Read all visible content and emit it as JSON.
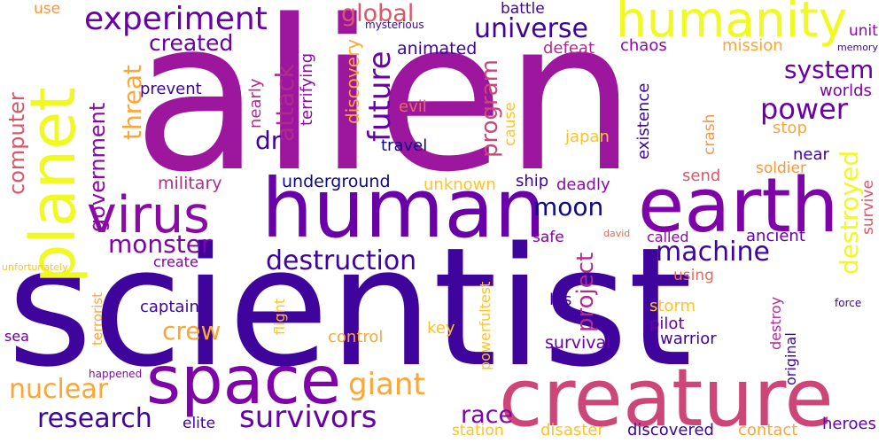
{
  "words": [
    {
      "text": "alien",
      "color": "#9c179e",
      "rotated": false
    },
    {
      "text": "scientist",
      "color": "#3e049c",
      "rotated": false
    },
    {
      "text": "human",
      "color": "#6a00a8",
      "rotated": false
    },
    {
      "text": "creature",
      "color": "#cc4778",
      "rotated": false
    },
    {
      "text": "earth",
      "color": "#7e03a8",
      "rotated": false
    },
    {
      "text": "space",
      "color": "#7e03a8",
      "rotated": false
    },
    {
      "text": "planet",
      "color": "#f0f921",
      "rotated": true
    },
    {
      "text": "humanity",
      "color": "#f0f921",
      "rotated": false
    },
    {
      "text": "virus",
      "color": "#8b0aa5",
      "rotated": false
    },
    {
      "text": "experiment",
      "color": "#6a00a8",
      "rotated": false
    },
    {
      "text": "destruction",
      "color": "#3e049c",
      "rotated": false
    },
    {
      "text": "survivors",
      "color": "#6a00a8",
      "rotated": false
    },
    {
      "text": "research",
      "color": "#3e049c",
      "rotated": false
    },
    {
      "text": "nuclear",
      "color": "#fca636",
      "rotated": false
    },
    {
      "text": "giant",
      "color": "#fca636",
      "rotated": false
    },
    {
      "text": "machine",
      "color": "#3e049c",
      "rotated": false
    },
    {
      "text": "power",
      "color": "#6a00a8",
      "rotated": false
    },
    {
      "text": "universe",
      "color": "#3e049c",
      "rotated": false
    },
    {
      "text": "future",
      "color": "#6a00a8",
      "rotated": true
    },
    {
      "text": "system",
      "color": "#6a00a8",
      "rotated": false
    },
    {
      "text": "monster",
      "color": "#7e03a8",
      "rotated": false
    },
    {
      "text": "moon",
      "color": "#0d0887",
      "rotated": false
    },
    {
      "text": "created",
      "color": "#6a00a8",
      "rotated": false
    },
    {
      "text": "global",
      "color": "#d8576b",
      "rotated": false
    },
    {
      "text": "crew",
      "color": "#fca636",
      "rotated": false
    },
    {
      "text": "race",
      "color": "#7e03a8",
      "rotated": false
    },
    {
      "text": "destroyed",
      "color": "#f0f921",
      "rotated": true
    },
    {
      "text": "government",
      "color": "#8b0aa5",
      "rotated": true
    },
    {
      "text": "computer",
      "color": "#d8576b",
      "rotated": true
    },
    {
      "text": "threat",
      "color": "#fca636",
      "rotated": true
    },
    {
      "text": "attack",
      "color": "#b12a90",
      "rotated": true
    },
    {
      "text": "dr",
      "color": "#3e049c",
      "rotated": false
    },
    {
      "text": "program",
      "color": "#cc4778",
      "rotated": true
    },
    {
      "text": "project",
      "color": "#b12a90",
      "rotated": true
    },
    {
      "text": "discovery",
      "color": "#fca636",
      "rotated": true
    },
    {
      "text": "terrifying",
      "color": "#8b0aa5",
      "rotated": true
    },
    {
      "text": "nearly",
      "color": "#b12a90",
      "rotated": true
    },
    {
      "text": "prevent",
      "color": "#3e049c",
      "rotated": false
    },
    {
      "text": "military",
      "color": "#b12a90",
      "rotated": false
    },
    {
      "text": "underground",
      "color": "#0d0887",
      "rotated": false
    },
    {
      "text": "unknown",
      "color": "#fdc328",
      "rotated": false
    },
    {
      "text": "ship",
      "color": "#3e049c",
      "rotated": false
    },
    {
      "text": "deadly",
      "color": "#8b0aa5",
      "rotated": false
    },
    {
      "text": "travel",
      "color": "#0d0887",
      "rotated": false
    },
    {
      "text": "japan",
      "color": "#fdc328",
      "rotated": false
    },
    {
      "text": "evil",
      "color": "#e56b5d",
      "rotated": false
    },
    {
      "text": "cause",
      "color": "#fdc328",
      "rotated": true
    },
    {
      "text": "animated",
      "color": "#3e049c",
      "rotated": false
    },
    {
      "text": "mysterious",
      "color": "#3e049c",
      "rotated": false
    },
    {
      "text": "battle",
      "color": "#3e049c",
      "rotated": false
    },
    {
      "text": "defeat",
      "color": "#b12a90",
      "rotated": false
    },
    {
      "text": "chaos",
      "color": "#8b0aa5",
      "rotated": false
    },
    {
      "text": "mission",
      "color": "#fca636",
      "rotated": false
    },
    {
      "text": "unit",
      "color": "#8b0aa5",
      "rotated": false
    },
    {
      "text": "memory",
      "color": "#3e049c",
      "rotated": false
    },
    {
      "text": "worlds",
      "color": "#7e03a8",
      "rotated": false
    },
    {
      "text": "existence",
      "color": "#3e049c",
      "rotated": true
    },
    {
      "text": "crash",
      "color": "#f89540",
      "rotated": true
    },
    {
      "text": "stop",
      "color": "#fca636",
      "rotated": false
    },
    {
      "text": "near",
      "color": "#3e049c",
      "rotated": false
    },
    {
      "text": "soldier",
      "color": "#f89540",
      "rotated": false
    },
    {
      "text": "send",
      "color": "#d8576b",
      "rotated": false
    },
    {
      "text": "survive",
      "color": "#d8576b",
      "rotated": true
    },
    {
      "text": "ancient",
      "color": "#6a00a8",
      "rotated": false
    },
    {
      "text": "called",
      "color": "#8b0aa5",
      "rotated": false
    },
    {
      "text": "david",
      "color": "#e56b5d",
      "rotated": false
    },
    {
      "text": "safe",
      "color": "#7e03a8",
      "rotated": false
    },
    {
      "text": "create",
      "color": "#7e03a8",
      "rotated": false
    },
    {
      "text": "use",
      "color": "#f89540",
      "rotated": false
    },
    {
      "text": "unfortunately",
      "color": "#fdc328",
      "rotated": false
    },
    {
      "text": "terrorist",
      "color": "#fca636",
      "rotated": true
    },
    {
      "text": "flight",
      "color": "#fdc328",
      "rotated": true
    },
    {
      "text": "captain",
      "color": "#3e049c",
      "rotated": false
    },
    {
      "text": "los",
      "color": "#3e049c",
      "rotated": false
    },
    {
      "text": "powerfultest",
      "color": "#fdc328",
      "rotated": true
    },
    {
      "text": "storm",
      "color": "#fdc328",
      "rotated": false
    },
    {
      "text": "using",
      "color": "#e56b5d",
      "rotated": false
    },
    {
      "text": "pilot",
      "color": "#6a00a8",
      "rotated": false
    },
    {
      "text": "destroy",
      "color": "#b12a90",
      "rotated": true
    },
    {
      "text": "original",
      "color": "#3e049c",
      "rotated": true
    },
    {
      "text": "force",
      "color": "#3e049c",
      "rotated": false
    },
    {
      "text": "warrior",
      "color": "#3e049c",
      "rotated": false
    },
    {
      "text": "survival",
      "color": "#6a00a8",
      "rotated": false
    },
    {
      "text": "control",
      "color": "#fca636",
      "rotated": false
    },
    {
      "text": "key",
      "color": "#fdc328",
      "rotated": false
    },
    {
      "text": "sea",
      "color": "#6a00a8",
      "rotated": false
    },
    {
      "text": "happened",
      "color": "#8b0aa5",
      "rotated": false
    },
    {
      "text": "elite",
      "color": "#3e049c",
      "rotated": false
    },
    {
      "text": "station",
      "color": "#fdc328",
      "rotated": false
    },
    {
      "text": "disaster",
      "color": "#fdc328",
      "rotated": false
    },
    {
      "text": "discovered",
      "color": "#3e049c",
      "rotated": false
    },
    {
      "text": "contact",
      "color": "#fca636",
      "rotated": false
    },
    {
      "text": "heroes",
      "color": "#6a00a8",
      "rotated": false
    }
  ]
}
